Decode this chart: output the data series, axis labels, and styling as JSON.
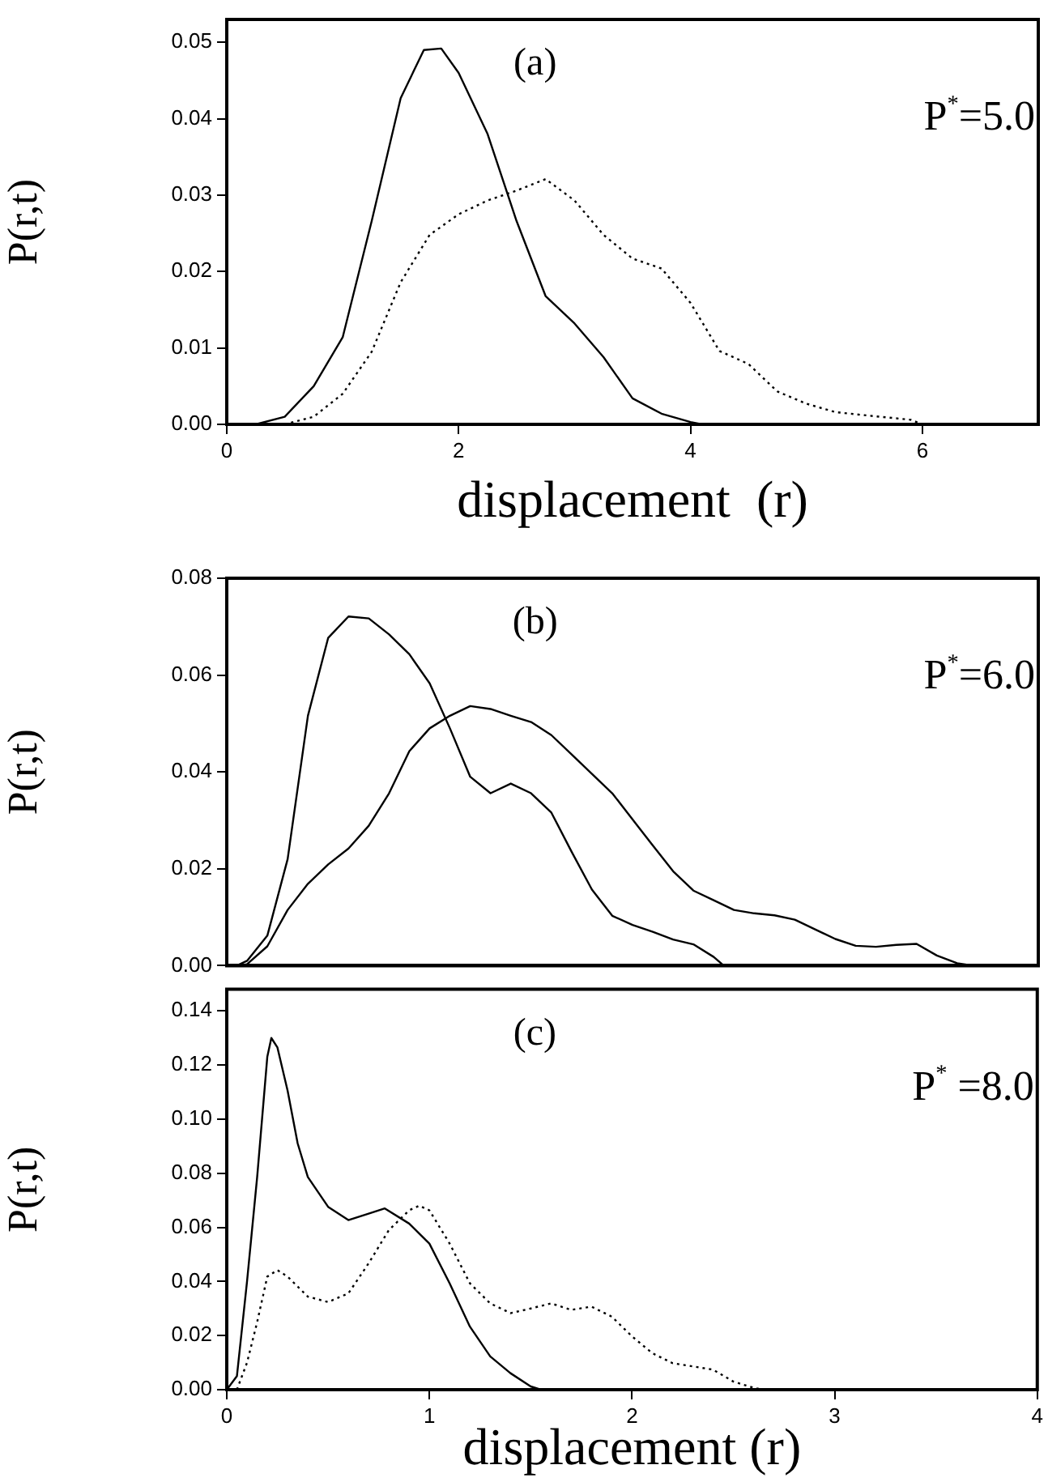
{
  "chart_data": [
    {
      "type": "line",
      "xlabel": "displacement  (r)",
      "ylabel": "P(r,t)",
      "annotations": [
        "(a)",
        "P$^{*}$=5.0"
      ],
      "xlim": [
        0,
        7
      ],
      "ylim": [
        0,
        0.053
      ],
      "xticks": [
        0,
        2,
        4,
        6
      ],
      "yticks": [
        {
          "value": 0,
          "label": "0.00"
        },
        {
          "value": 0.01,
          "label": "0.01"
        },
        {
          "value": 0.02,
          "label": "0.02"
        },
        {
          "value": 0.03,
          "label": "0.03"
        },
        {
          "value": 0.04,
          "label": "0.04"
        },
        {
          "value": 0.05,
          "label": "0.05"
        }
      ],
      "marker": "none",
      "series": [
        {
          "color": "#000000",
          "line_style": "solid",
          "x": [
            0.25,
            0.5,
            0.75,
            1.0,
            1.25,
            1.5,
            1.7,
            1.85,
            2.0,
            2.25,
            2.5,
            2.75,
            3.0,
            3.25,
            3.5,
            3.75,
            4.0,
            4.1
          ],
          "values": [
            0,
            0.001,
            0.005,
            0.0114,
            0.0266,
            0.0427,
            0.049,
            0.0492,
            0.046,
            0.038,
            0.0266,
            0.0168,
            0.0132,
            0.0088,
            0.0034,
            0.0014,
            0.0003,
            0
          ]
        },
        {
          "color": "#000000",
          "line_style": "dotted",
          "x": [
            0.5,
            0.75,
            1.0,
            1.25,
            1.5,
            1.75,
            2.0,
            2.25,
            2.5,
            2.75,
            3.0,
            3.25,
            3.5,
            3.75,
            4.0,
            4.25,
            4.5,
            4.75,
            5.0,
            5.25,
            5.5,
            5.9,
            6.0
          ],
          "values": [
            0,
            0.001,
            0.004,
            0.0095,
            0.0186,
            0.0248,
            0.0275,
            0.0293,
            0.0306,
            0.0321,
            0.0293,
            0.0248,
            0.0217,
            0.0204,
            0.0159,
            0.0096,
            0.0079,
            0.0043,
            0.0027,
            0.0016,
            0.0012,
            0.0006,
            0
          ]
        }
      ]
    },
    {
      "type": "line",
      "ylabel": "P(r,t)",
      "annotations": [
        "(b)",
        "P$^{*}$=6.0"
      ],
      "xlim": [
        0,
        4
      ],
      "ylim": [
        0,
        0.08
      ],
      "yticks": [
        {
          "value": 0,
          "label": "0.00"
        },
        {
          "value": 0.02,
          "label": "0.02"
        },
        {
          "value": 0.04,
          "label": "0.04"
        },
        {
          "value": 0.06,
          "label": "0.06"
        },
        {
          "value": 0.08,
          "label": "0.08"
        }
      ],
      "tick_labels": "y",
      "marker": "none",
      "series": [
        {
          "color": "#000000",
          "line_style": "solid",
          "x": [
            0.05,
            0.1,
            0.2,
            0.3,
            0.4,
            0.5,
            0.6,
            0.7,
            0.8,
            0.9,
            1.0,
            1.1,
            1.2,
            1.3,
            1.4,
            1.5,
            1.6,
            1.7,
            1.8,
            1.9,
            2.0,
            2.1,
            2.2,
            2.3,
            2.4,
            2.45
          ],
          "values": [
            0,
            0.001,
            0.0062,
            0.022,
            0.0516,
            0.0677,
            0.0721,
            0.0717,
            0.0684,
            0.0643,
            0.0583,
            0.049,
            0.039,
            0.0356,
            0.0376,
            0.0356,
            0.0316,
            0.0235,
            0.0157,
            0.0103,
            0.0084,
            0.007,
            0.0054,
            0.0044,
            0.0018,
            0
          ]
        },
        {
          "color": "#000000",
          "line_style": "solid",
          "x": [
            0.05,
            0.1,
            0.2,
            0.3,
            0.4,
            0.5,
            0.6,
            0.7,
            0.8,
            0.9,
            1.0,
            1.1,
            1.2,
            1.3,
            1.4,
            1.5,
            1.6,
            1.7,
            1.8,
            1.9,
            2.0,
            2.1,
            2.2,
            2.3,
            2.4,
            2.5,
            2.6,
            2.7,
            2.8,
            2.9,
            3.0,
            3.1,
            3.2,
            3.3,
            3.4,
            3.5,
            3.6,
            3.68
          ],
          "values": [
            0,
            0.0003,
            0.004,
            0.0115,
            0.0169,
            0.0209,
            0.0242,
            0.0289,
            0.0356,
            0.0443,
            0.049,
            0.0516,
            0.0536,
            0.053,
            0.0516,
            0.0503,
            0.0476,
            0.0436,
            0.0396,
            0.0356,
            0.0302,
            0.0248,
            0.0195,
            0.0155,
            0.0135,
            0.0115,
            0.0108,
            0.0104,
            0.0095,
            0.0075,
            0.0055,
            0.0041,
            0.0039,
            0.0043,
            0.0045,
            0.0021,
            0.0005,
            0
          ]
        }
      ]
    },
    {
      "type": "line",
      "xlabel": "displacement (r)",
      "ylabel": "P(r,t)",
      "annotations": [
        "(c)",
        "P$^{*}$ =8.0"
      ],
      "xlim": [
        0,
        4
      ],
      "ylim": [
        0,
        0.148
      ],
      "xticks": [
        0,
        1,
        2,
        3,
        4
      ],
      "yticks": [
        {
          "value": 0,
          "label": "0.00"
        },
        {
          "value": 0.02,
          "label": "0.02"
        },
        {
          "value": 0.04,
          "label": "0.04"
        },
        {
          "value": 0.06,
          "label": "0.06"
        },
        {
          "value": 0.08,
          "label": "0.08"
        },
        {
          "value": 0.1,
          "label": "0.10"
        },
        {
          "value": 0.12,
          "label": "0.12"
        },
        {
          "value": 0.14,
          "label": "0.14"
        }
      ],
      "marker": "none",
      "series": [
        {
          "color": "#000000",
          "line_style": "solid",
          "x": [
            0,
            0.05,
            0.1,
            0.15,
            0.2,
            0.22,
            0.25,
            0.3,
            0.35,
            0.4,
            0.5,
            0.6,
            0.7,
            0.78,
            0.9,
            1.0,
            1.1,
            1.2,
            1.3,
            1.4,
            1.5,
            1.55
          ],
          "values": [
            0,
            0.005,
            0.04,
            0.0786,
            0.123,
            0.13,
            0.1265,
            0.1106,
            0.091,
            0.0786,
            0.0676,
            0.0627,
            0.0651,
            0.067,
            0.0614,
            0.054,
            0.0393,
            0.0233,
            0.0123,
            0.0061,
            0.0012,
            0
          ]
        },
        {
          "color": "#000000",
          "line_style": "dotted",
          "x": [
            0.05,
            0.1,
            0.15,
            0.2,
            0.25,
            0.3,
            0.4,
            0.5,
            0.6,
            0.7,
            0.8,
            0.9,
            0.95,
            1.0,
            1.1,
            1.2,
            1.3,
            1.4,
            1.5,
            1.6,
            1.7,
            1.8,
            1.9,
            2.0,
            2.1,
            2.2,
            2.3,
            2.4,
            2.5,
            2.6,
            2.65
          ],
          "values": [
            0,
            0.01,
            0.025,
            0.0418,
            0.0442,
            0.0418,
            0.0344,
            0.0324,
            0.0356,
            0.0467,
            0.059,
            0.0663,
            0.068,
            0.0663,
            0.054,
            0.0393,
            0.0319,
            0.0283,
            0.03,
            0.0319,
            0.0295,
            0.0307,
            0.027,
            0.0197,
            0.0135,
            0.0098,
            0.0086,
            0.0074,
            0.003,
            0.0007,
            0
          ]
        }
      ]
    }
  ]
}
